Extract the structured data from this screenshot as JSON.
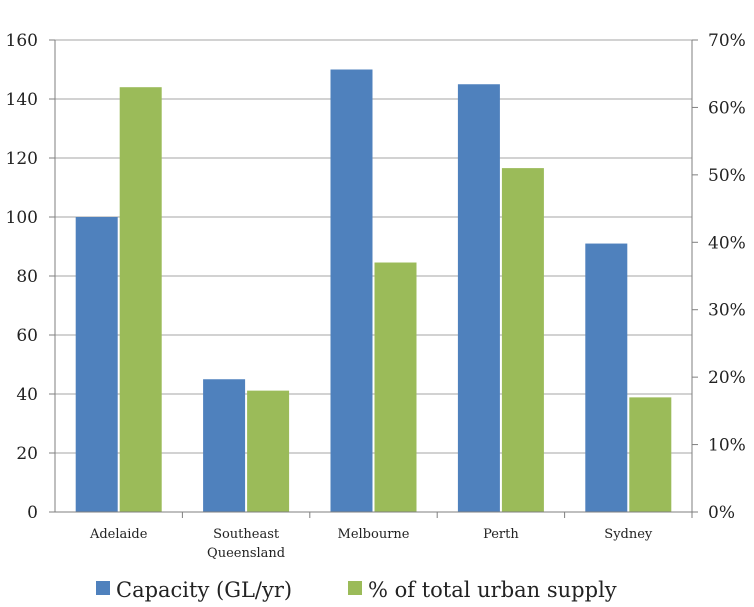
{
  "chart_data": {
    "type": "bar",
    "categories": [
      [
        "Adelaide"
      ],
      [
        "Southeast",
        "Queensland"
      ],
      [
        "Melbourne"
      ],
      [
        "Perth"
      ],
      [
        "Sydney"
      ]
    ],
    "series": [
      {
        "name": "Capacity (GL/yr)",
        "axis": "left",
        "color": "#4f81bd",
        "values": [
          100,
          45,
          150,
          145,
          91
        ]
      },
      {
        "name": "% of total urban supply",
        "axis": "right",
        "color": "#9bbb59",
        "values": [
          63,
          18,
          37,
          51,
          17
        ]
      }
    ],
    "y_left": {
      "min": 0,
      "max": 160,
      "step": 20,
      "ticks": [
        "0",
        "20",
        "40",
        "60",
        "80",
        "100",
        "120",
        "140",
        "160"
      ]
    },
    "y_right": {
      "min": 0,
      "max": 70,
      "step": 10,
      "ticks": [
        "0%",
        "10%",
        "20%",
        "30%",
        "40%",
        "50%",
        "60%",
        "70%"
      ]
    },
    "grid": true,
    "legend_position": "bottom",
    "gridline_color": "#a6a6a6",
    "axis_color": "#7f7f7f"
  }
}
